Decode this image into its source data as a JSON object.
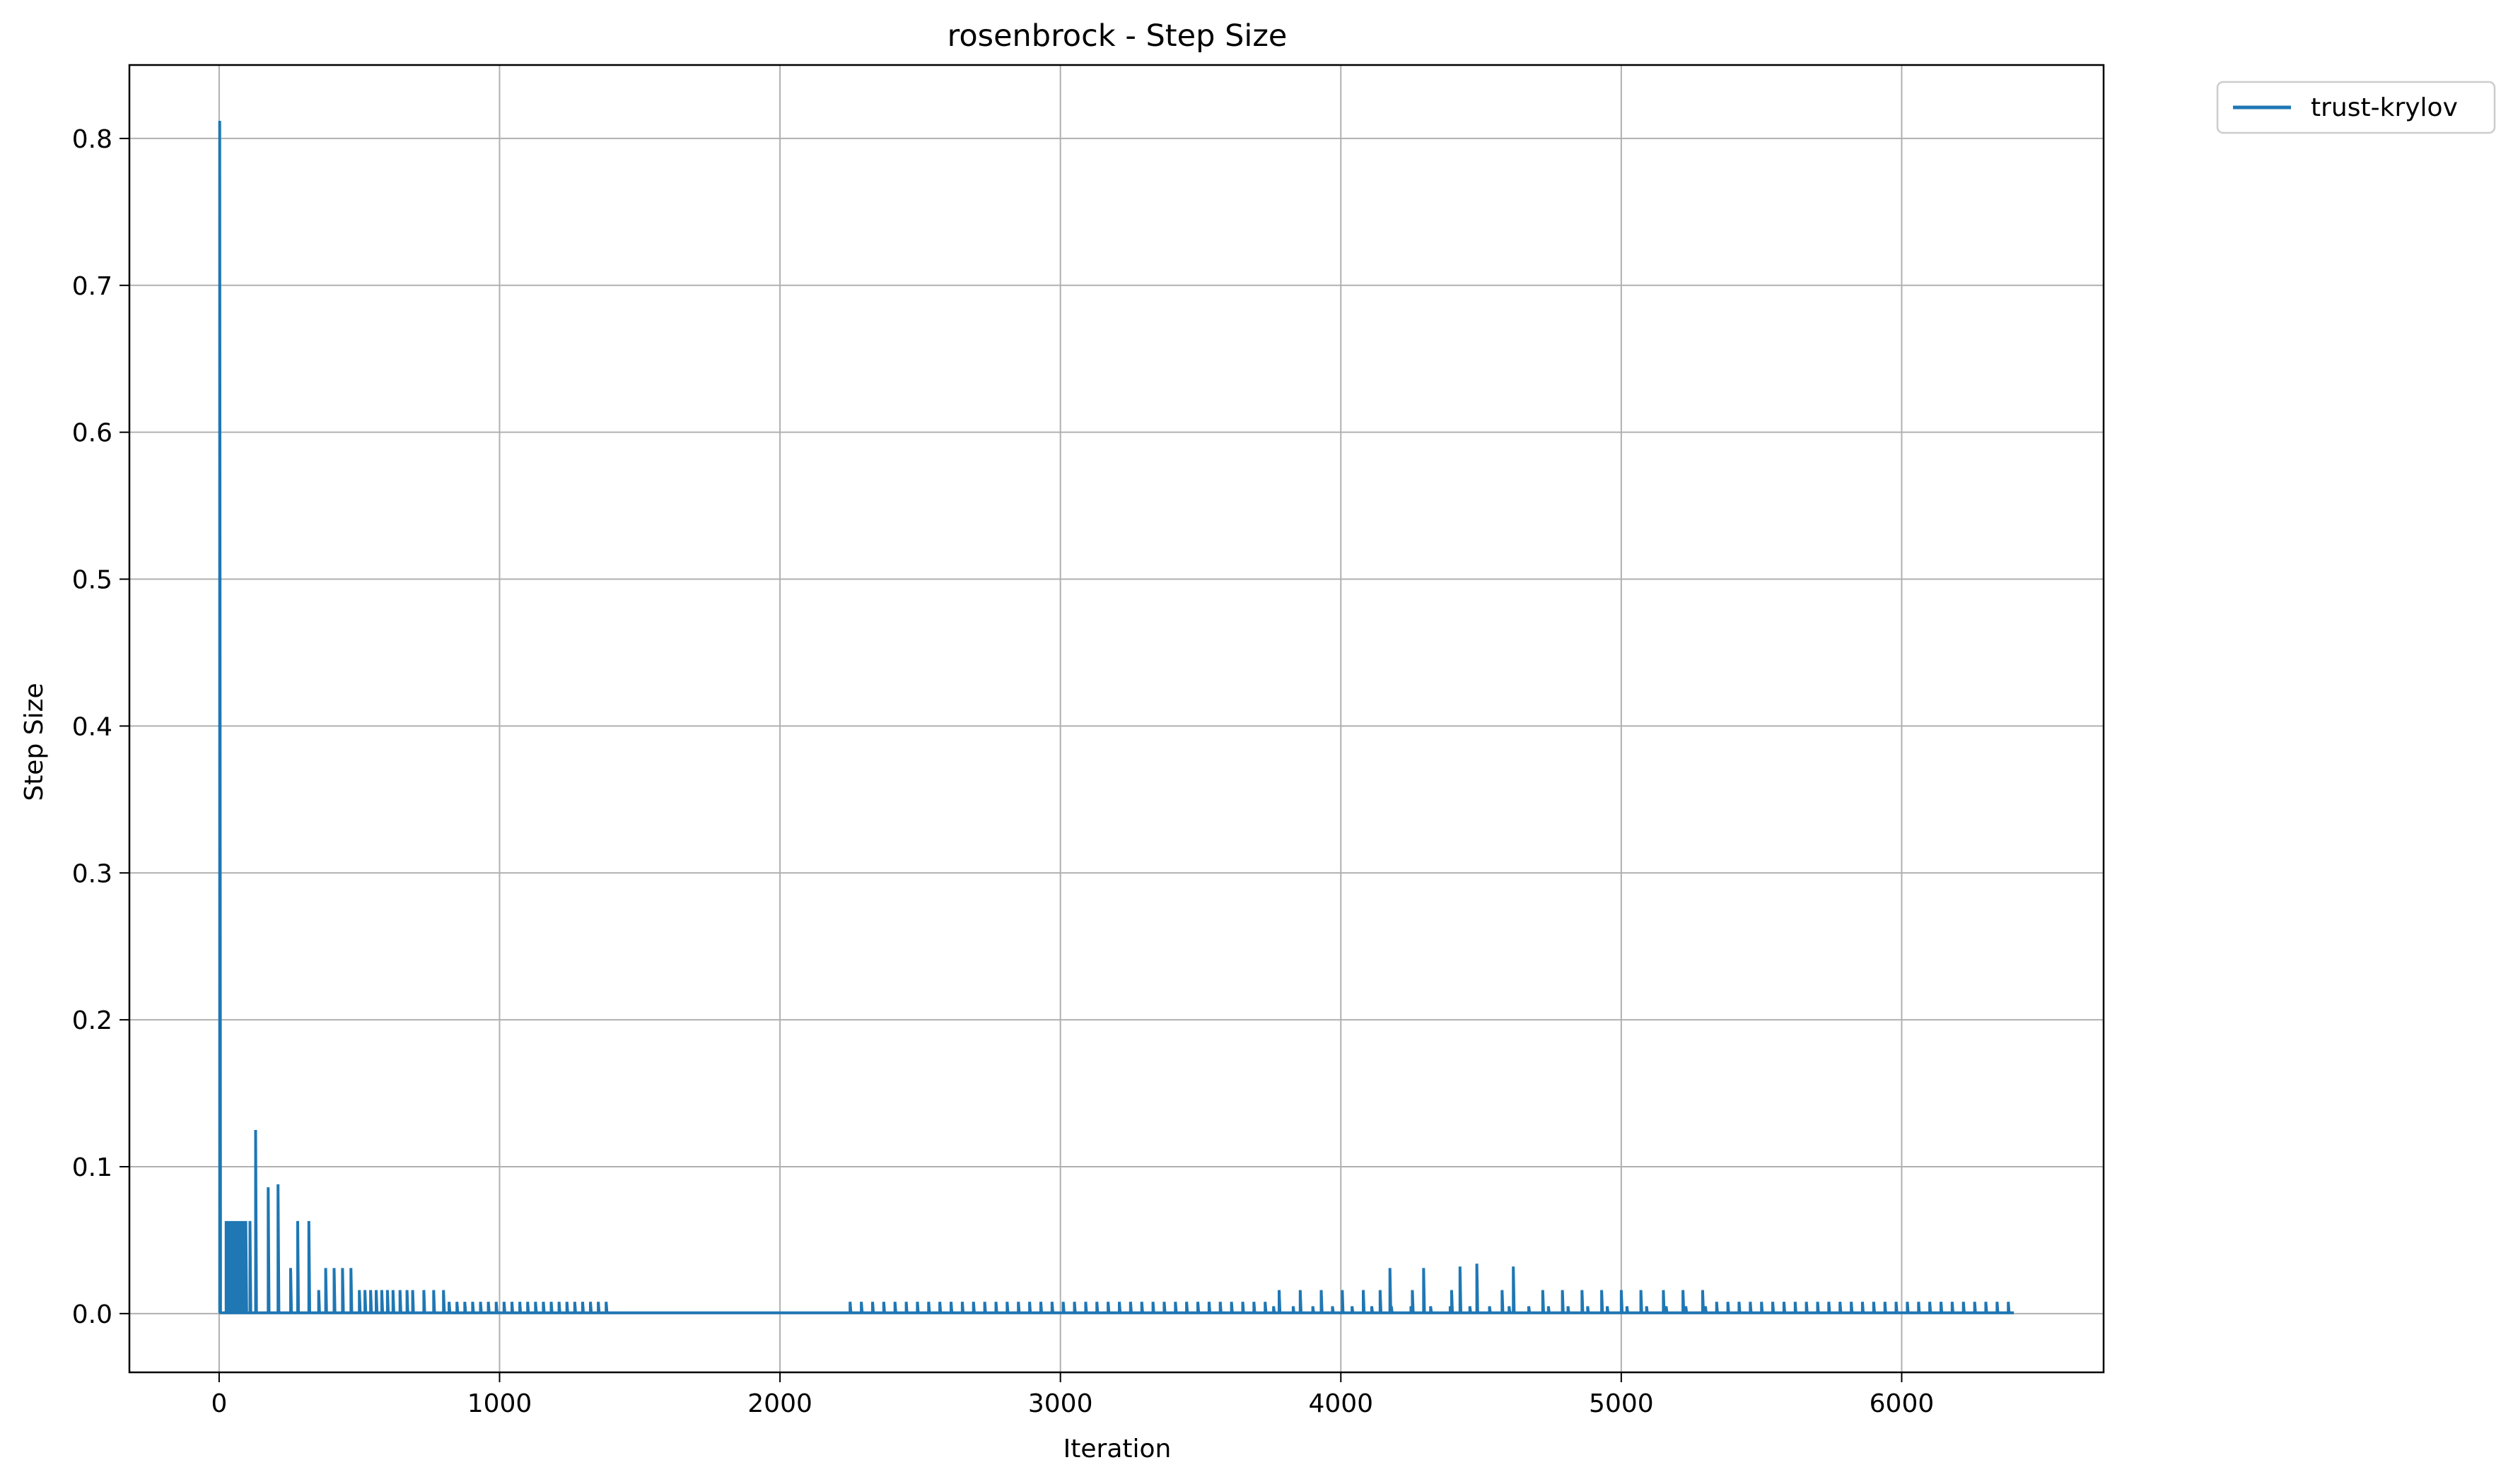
{
  "chart_data": {
    "type": "line",
    "title": "rosenbrock - Step Size",
    "xlabel": "Iteration",
    "ylabel": "Step Size",
    "xlim": [
      -320,
      6720
    ],
    "ylim": [
      -0.04,
      0.85
    ],
    "xticks": [
      0,
      1000,
      2000,
      3000,
      4000,
      5000,
      6000
    ],
    "yticks": [
      0.0,
      0.1,
      0.2,
      0.3,
      0.4,
      0.5,
      0.6,
      0.7,
      0.8
    ],
    "xtick_labels": [
      "0",
      "1000",
      "2000",
      "3000",
      "4000",
      "5000",
      "6000"
    ],
    "ytick_labels": [
      "0.0",
      "0.1",
      "0.2",
      "0.3",
      "0.4",
      "0.5",
      "0.6",
      "0.7",
      "0.8"
    ],
    "grid": true,
    "legend_position": "outside-top-right",
    "series": [
      {
        "name": "trust-krylov",
        "color": "#1f77b4",
        "baseline_segments": [
          {
            "x_start": 0,
            "x_end": 1400,
            "y": 0.0005
          },
          {
            "x_start": 1400,
            "x_end": 2250,
            "y": 0.004
          },
          {
            "x_start": 2250,
            "x_end": 6400,
            "y": 0.0005
          }
        ],
        "spikes": [
          {
            "x": 2,
            "y": 0.812
          },
          {
            "x": 25,
            "y": 0.063
          },
          {
            "x": 35,
            "y": 0.063
          },
          {
            "x": 45,
            "y": 0.063
          },
          {
            "x": 55,
            "y": 0.063
          },
          {
            "x": 65,
            "y": 0.063
          },
          {
            "x": 75,
            "y": 0.063
          },
          {
            "x": 85,
            "y": 0.063
          },
          {
            "x": 95,
            "y": 0.063
          },
          {
            "x": 110,
            "y": 0.063
          },
          {
            "x": 130,
            "y": 0.125
          },
          {
            "x": 175,
            "y": 0.086
          },
          {
            "x": 210,
            "y": 0.088
          },
          {
            "x": 255,
            "y": 0.031
          },
          {
            "x": 280,
            "y": 0.063
          },
          {
            "x": 320,
            "y": 0.063
          },
          {
            "x": 355,
            "y": 0.016
          },
          {
            "x": 380,
            "y": 0.031
          },
          {
            "x": 410,
            "y": 0.031
          },
          {
            "x": 440,
            "y": 0.031
          },
          {
            "x": 470,
            "y": 0.031
          },
          {
            "x": 500,
            "y": 0.016
          },
          {
            "x": 520,
            "y": 0.016
          },
          {
            "x": 540,
            "y": 0.016
          },
          {
            "x": 560,
            "y": 0.016
          },
          {
            "x": 580,
            "y": 0.016
          },
          {
            "x": 600,
            "y": 0.016
          },
          {
            "x": 620,
            "y": 0.016
          },
          {
            "x": 645,
            "y": 0.016
          },
          {
            "x": 670,
            "y": 0.016
          },
          {
            "x": 690,
            "y": 0.016
          },
          {
            "x": 730,
            "y": 0.016
          },
          {
            "x": 765,
            "y": 0.016
          },
          {
            "x": 800,
            "y": 0.016
          },
          {
            "x": 3780,
            "y": 0.016
          },
          {
            "x": 3855,
            "y": 0.016
          },
          {
            "x": 3930,
            "y": 0.016
          },
          {
            "x": 4005,
            "y": 0.016
          },
          {
            "x": 4080,
            "y": 0.016
          },
          {
            "x": 4140,
            "y": 0.016
          },
          {
            "x": 4175,
            "y": 0.031
          },
          {
            "x": 4255,
            "y": 0.016
          },
          {
            "x": 4295,
            "y": 0.031
          },
          {
            "x": 4395,
            "y": 0.016
          },
          {
            "x": 4425,
            "y": 0.032
          },
          {
            "x": 4485,
            "y": 0.034
          },
          {
            "x": 4575,
            "y": 0.016
          },
          {
            "x": 4615,
            "y": 0.032
          },
          {
            "x": 4720,
            "y": 0.016
          },
          {
            "x": 4790,
            "y": 0.016
          },
          {
            "x": 4860,
            "y": 0.016
          },
          {
            "x": 4930,
            "y": 0.016
          },
          {
            "x": 5000,
            "y": 0.016
          },
          {
            "x": 5070,
            "y": 0.016
          },
          {
            "x": 5150,
            "y": 0.016
          },
          {
            "x": 5220,
            "y": 0.016
          },
          {
            "x": 5290,
            "y": 0.016
          }
        ],
        "periodic_spikes": [
          {
            "x_start": 820,
            "x_end": 1400,
            "spacing": 28,
            "y": 0.008
          },
          {
            "x_start": 2250,
            "x_end": 3760,
            "spacing": 40,
            "y": 0.008
          },
          {
            "x_start": 3760,
            "x_end": 5320,
            "spacing": 70,
            "y": 0.005
          },
          {
            "x_start": 5340,
            "x_end": 6400,
            "spacing": 40,
            "y": 0.008
          }
        ]
      }
    ]
  }
}
